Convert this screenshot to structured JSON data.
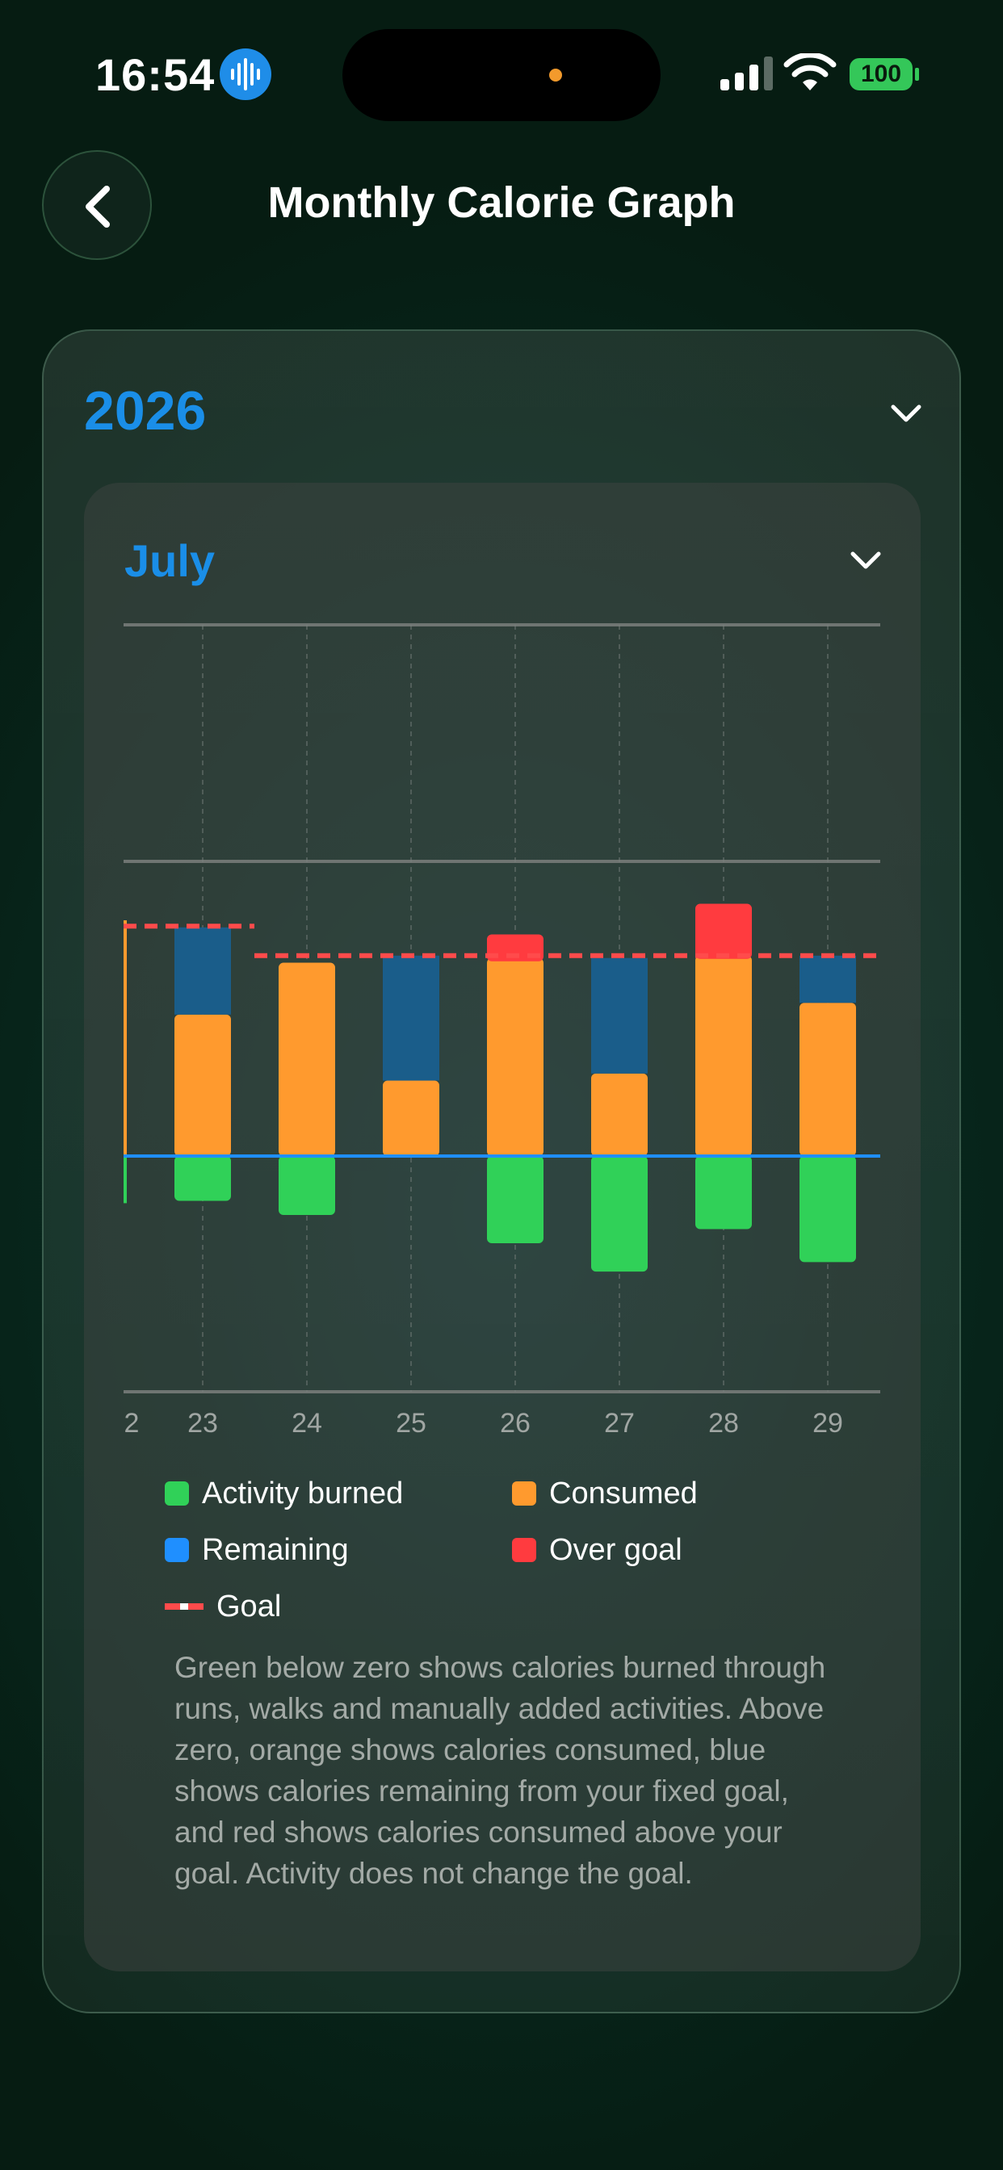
{
  "status_bar": {
    "time": "16:54",
    "battery": "100"
  },
  "header": {
    "title": "Monthly Calorie Graph"
  },
  "year_selector": {
    "value": "2026"
  },
  "month_selector": {
    "value": "July"
  },
  "colors": {
    "activity": "#30d158",
    "consumed": "#ff9a2e",
    "remaining": "#1a5d8a",
    "over_goal": "#ff3b3f",
    "goal_line": "#ff4b4b",
    "zero_line": "#1f8fff"
  },
  "chart_data": {
    "type": "bar",
    "stacked": true,
    "x_tick_labels": [
      "2",
      "23",
      "24",
      "25",
      "26",
      "27",
      "28",
      "29"
    ],
    "categories": [
      "23",
      "24",
      "25",
      "26",
      "27",
      "28",
      "29"
    ],
    "series": [
      {
        "name": "Activity burned",
        "values": [
          -190,
          -250,
          0,
          -370,
          -490,
          -310,
          -450
        ]
      },
      {
        "name": "Consumed",
        "values": [
          600,
          820,
          320,
          840,
          350,
          850,
          650
        ]
      },
      {
        "name": "Remaining",
        "values": [
          370,
          0,
          530,
          0,
          490,
          0,
          200
        ]
      },
      {
        "name": "Over goal",
        "values": [
          0,
          0,
          0,
          100,
          0,
          220,
          0
        ]
      }
    ],
    "goal": [
      975,
      850,
      850,
      850,
      850,
      850,
      850
    ],
    "grid": true,
    "legend": [
      "Activity burned",
      "Consumed",
      "Remaining",
      "Over goal",
      "Goal"
    ],
    "legend_position": "bottom"
  },
  "legend": {
    "activity": "Activity burned",
    "consumed": "Consumed",
    "remaining": "Remaining",
    "over_goal": "Over goal",
    "goal": "Goal"
  },
  "note": "Green below zero shows calories burned through runs, walks and manually added activities. Above zero, orange shows calories consumed, blue shows calories remaining from your fixed goal, and red shows calories consumed above your goal. Activity does not change the goal."
}
